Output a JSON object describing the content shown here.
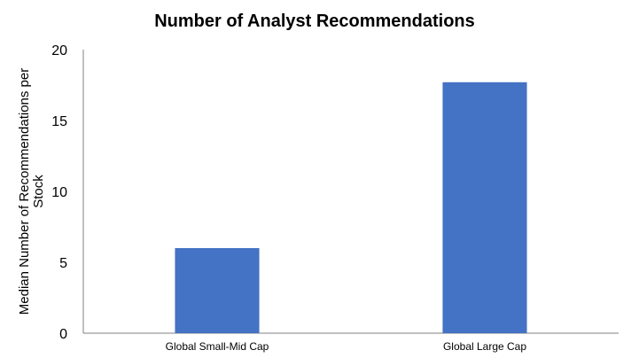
{
  "chart_data": {
    "type": "bar",
    "title": "Number of Analyst Recommendations",
    "xlabel": "",
    "ylabel_lines": [
      "Median Number of Recommendations per",
      "Stock"
    ],
    "categories": [
      "Global Small-Mid Cap",
      "Global Large Cap"
    ],
    "values": [
      6.0,
      17.7
    ],
    "ylim": [
      0,
      20
    ],
    "yticks": [
      0,
      5,
      10,
      15,
      20
    ],
    "grid": false,
    "legend": "none",
    "bar_color": "#4472C4"
  }
}
